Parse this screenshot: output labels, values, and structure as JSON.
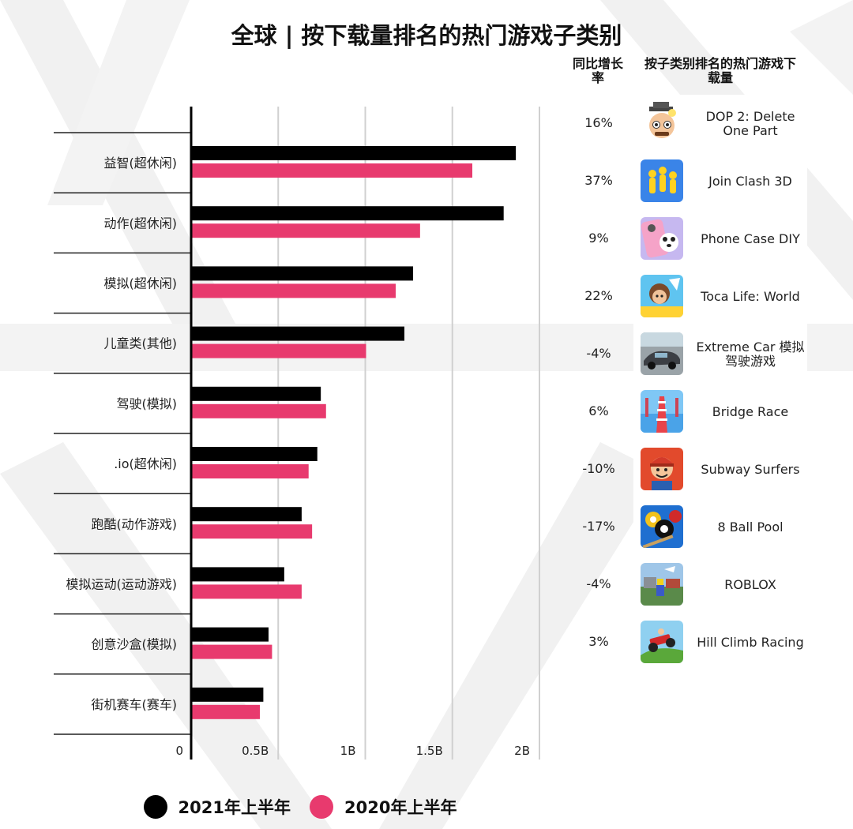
{
  "title": "全球 | 按下载量排名的热门游戏子类别",
  "headers": {
    "growth": "同比增长率",
    "top_game": "按子类别排名的热门游戏下载量"
  },
  "colors": {
    "series_2021": "#000000",
    "series_2020": "#e83a6e",
    "grid": "#d0d0d0",
    "background_shape": "#f0f0f0"
  },
  "chart_data": {
    "type": "bar",
    "orientation": "horizontal",
    "categories": [
      "益智(超休闲)",
      "动作(超休闲)",
      "模拟(超休闲)",
      "儿童类(其他)",
      "驾驶(模拟)",
      ".io(超休闲)",
      "跑酷(动作游戏)",
      "模拟运动(运动游戏)",
      "创意沙盒(模拟)",
      "街机赛车(赛车)"
    ],
    "series": [
      {
        "name": "2021年上半年",
        "values": [
          1.86,
          1.79,
          1.27,
          1.22,
          0.74,
          0.72,
          0.63,
          0.53,
          0.44,
          0.41
        ]
      },
      {
        "name": "2020年上半年",
        "values": [
          1.61,
          1.31,
          1.17,
          1.0,
          0.77,
          0.67,
          0.69,
          0.63,
          0.46,
          0.39
        ]
      }
    ],
    "xlim": [
      0,
      2
    ],
    "xticks": [
      0,
      0.5,
      1,
      1.5,
      2
    ],
    "xtick_labels": [
      "0",
      "0.5B",
      "1B",
      "1.5B",
      "2B"
    ],
    "grid": true,
    "legend_position": "bottom"
  },
  "rows": [
    {
      "growth": "16%",
      "game": "DOP 2: Delete One Part",
      "icon": "dop2-icon"
    },
    {
      "growth": "37%",
      "game": "Join Clash 3D",
      "icon": "join-clash-icon"
    },
    {
      "growth": "9%",
      "game": "Phone Case DIY",
      "icon": "phone-case-icon"
    },
    {
      "growth": "22%",
      "game": "Toca Life: World",
      "icon": "toca-life-icon"
    },
    {
      "growth": "-4%",
      "game": "Extreme Car 模拟驾驶游戏",
      "icon": "extreme-car-icon"
    },
    {
      "growth": "6%",
      "game": "Bridge Race",
      "icon": "bridge-race-icon"
    },
    {
      "growth": "-10%",
      "game": "Subway Surfers",
      "icon": "subway-surfers-icon"
    },
    {
      "growth": "-17%",
      "game": "8 Ball Pool",
      "icon": "8-ball-pool-icon"
    },
    {
      "growth": "-4%",
      "game": "ROBLOX",
      "icon": "roblox-icon"
    },
    {
      "growth": "3%",
      "game": "Hill Climb Racing",
      "icon": "hill-climb-icon"
    }
  ]
}
